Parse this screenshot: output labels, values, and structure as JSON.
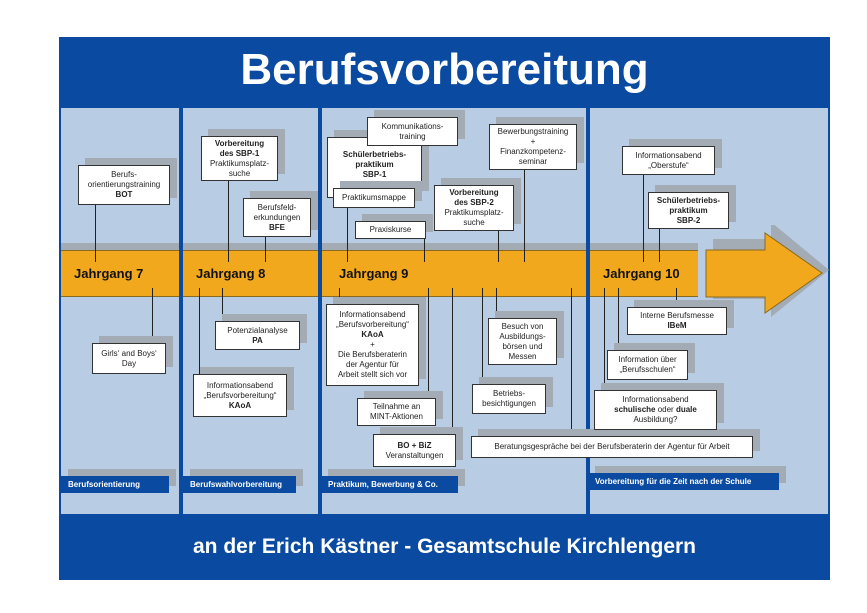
{
  "title": "Berufsvorbereitung",
  "footer": "an der Erich Kästner - Gesamtschule Kirchlengern",
  "colors": {
    "frame": "#0a4aa0",
    "background": "#b8cce4",
    "bar": "#f2a81d"
  },
  "years": [
    "Jahrgang 7",
    "Jahrgang 8",
    "Jahrgang 9",
    "Jahrgang 10"
  ],
  "phases": [
    "Berufsorientierung",
    "Berufswahlvorbereitung",
    "Praktikum, Bewerbung & Co.",
    "Vorbereitung für die Zeit nach der Schule"
  ],
  "boxes": {
    "bot": [
      "Berufs-",
      "orientierungstraining",
      "BOT"
    ],
    "sbp1prep": [
      "Vorbereitung",
      "des SBP-1",
      "Praktikumsplatz-",
      "suche"
    ],
    "bfe": [
      "Berufsfeld-",
      "erkundungen",
      "BFE"
    ],
    "komm": [
      "Kommunikations-",
      "training"
    ],
    "sbp1": [
      "Schülerbetriebs-",
      "praktikum",
      "SBP-1"
    ],
    "mappe": [
      "Praktikumsmappe"
    ],
    "praxis": [
      "Praxiskurse"
    ],
    "sbp2prep": [
      "Vorbereitung",
      "des SBP-2",
      "Praktikumsplatz-",
      "suche"
    ],
    "bewerb": [
      "Bewerbungstraining",
      "+",
      "Finanzkompetenz-",
      "seminar"
    ],
    "oberstufe": [
      "Informationsabend",
      "„Oberstufe“"
    ],
    "sbp2": [
      "Schülerbetriebs-",
      "praktikum",
      "SBP-2"
    ],
    "girls": [
      "Girls‘ and Boys‘",
      "Day"
    ],
    "pa": [
      "Potenzialanalyse",
      "PA"
    ],
    "kaoa8": [
      "Informationsabend",
      "„Berufsvorbereitung“",
      "KAoA"
    ],
    "kaoa9": [
      "Informationsabend",
      "„Berufsvorbereitung“",
      "KAoA",
      "+",
      "Die Berufsberaterin",
      "der Agentur für",
      "Arbeit stellt sich vor"
    ],
    "mint": [
      "Teilnahme an",
      "MINT-Aktionen"
    ],
    "biz": [
      "BO + BiZ",
      "Veranstaltungen"
    ],
    "besuch": [
      "Besuch von",
      "Ausbildungs-",
      "börsen und",
      "Messen"
    ],
    "betrieb": [
      "Betriebs-",
      "besichtigungen"
    ],
    "beratung": [
      "Beratungsgespräche bei der Berufsberaterin der Agentur für Arbeit"
    ],
    "ibem": [
      "Interne Berufsmesse",
      "IBeM"
    ],
    "berufsschulen": [
      "Information über",
      "„Berufsschulen“"
    ],
    "dual": [
      "Informationsabend",
      "schulische",
      " oder ",
      "duale",
      "Ausbildung?"
    ]
  }
}
